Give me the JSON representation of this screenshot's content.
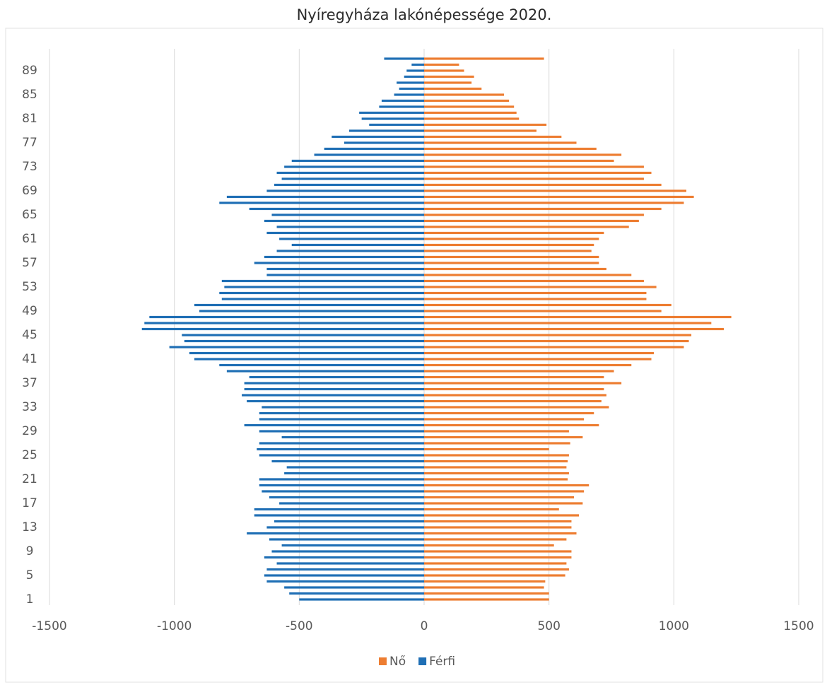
{
  "chart_data": {
    "type": "population-pyramid",
    "title": "Nyíregyháza lakónépessége 2020.",
    "categories": [
      "1",
      null,
      null,
      null,
      "5",
      null,
      null,
      null,
      "9",
      null,
      null,
      null,
      "13",
      null,
      null,
      null,
      "17",
      null,
      null,
      null,
      "21",
      null,
      null,
      null,
      "25",
      null,
      null,
      null,
      "29",
      null,
      null,
      null,
      "33",
      null,
      null,
      null,
      "37",
      null,
      null,
      null,
      "41",
      null,
      null,
      null,
      "45",
      null,
      null,
      null,
      "49",
      null,
      null,
      null,
      "53",
      null,
      null,
      null,
      "57",
      null,
      null,
      null,
      "61",
      null,
      null,
      null,
      "65",
      null,
      null,
      null,
      "69",
      null,
      null,
      null,
      "73",
      null,
      null,
      null,
      "77",
      null,
      null,
      null,
      "81",
      null,
      null,
      null,
      "85",
      null,
      null,
      null,
      "89",
      null,
      null
    ],
    "series": [
      {
        "name": "Nő",
        "color": "#ed7d31",
        "values": [
          500,
          500,
          480,
          485,
          565,
          580,
          570,
          590,
          590,
          520,
          570,
          610,
          590,
          590,
          620,
          540,
          635,
          600,
          640,
          660,
          575,
          580,
          570,
          575,
          580,
          500,
          585,
          635,
          580,
          700,
          640,
          680,
          740,
          710,
          730,
          720,
          790,
          720,
          760,
          830,
          910,
          920,
          1040,
          1060,
          1070,
          1200,
          1150,
          1230,
          950,
          990,
          890,
          890,
          930,
          880,
          830,
          730,
          700,
          700,
          670,
          680,
          700,
          720,
          820,
          860,
          880,
          950,
          1040,
          1080,
          1050,
          950,
          880,
          910,
          880,
          760,
          790,
          690,
          610,
          550,
          450,
          490,
          380,
          370,
          360,
          340,
          320,
          230,
          190,
          200,
          160,
          140,
          480
        ]
      },
      {
        "name": "Férfi",
        "color": "#1f6fb5",
        "values": [
          -500,
          -540,
          -560,
          -630,
          -640,
          -630,
          -590,
          -640,
          -610,
          -570,
          -620,
          -710,
          -630,
          -600,
          -680,
          -680,
          -580,
          -620,
          -650,
          -660,
          -660,
          -560,
          -550,
          -610,
          -660,
          -670,
          -660,
          -570,
          -660,
          -720,
          -660,
          -660,
          -650,
          -710,
          -730,
          -720,
          -720,
          -700,
          -790,
          -820,
          -920,
          -940,
          -1020,
          -960,
          -970,
          -1130,
          -1120,
          -1100,
          -900,
          -920,
          -810,
          -820,
          -800,
          -810,
          -630,
          -630,
          -680,
          -640,
          -590,
          -530,
          -580,
          -630,
          -590,
          -640,
          -610,
          -700,
          -820,
          -790,
          -630,
          -600,
          -570,
          -590,
          -560,
          -530,
          -440,
          -400,
          -320,
          -370,
          -300,
          -220,
          -250,
          -260,
          -180,
          -170,
          -120,
          -100,
          -110,
          -80,
          -70,
          -50,
          -160
        ]
      }
    ],
    "xlim": [
      -1500,
      1500
    ],
    "xticks": [
      -1500,
      -1000,
      -500,
      0,
      500,
      1000,
      1500
    ],
    "grid": true,
    "legend": "bottom"
  }
}
